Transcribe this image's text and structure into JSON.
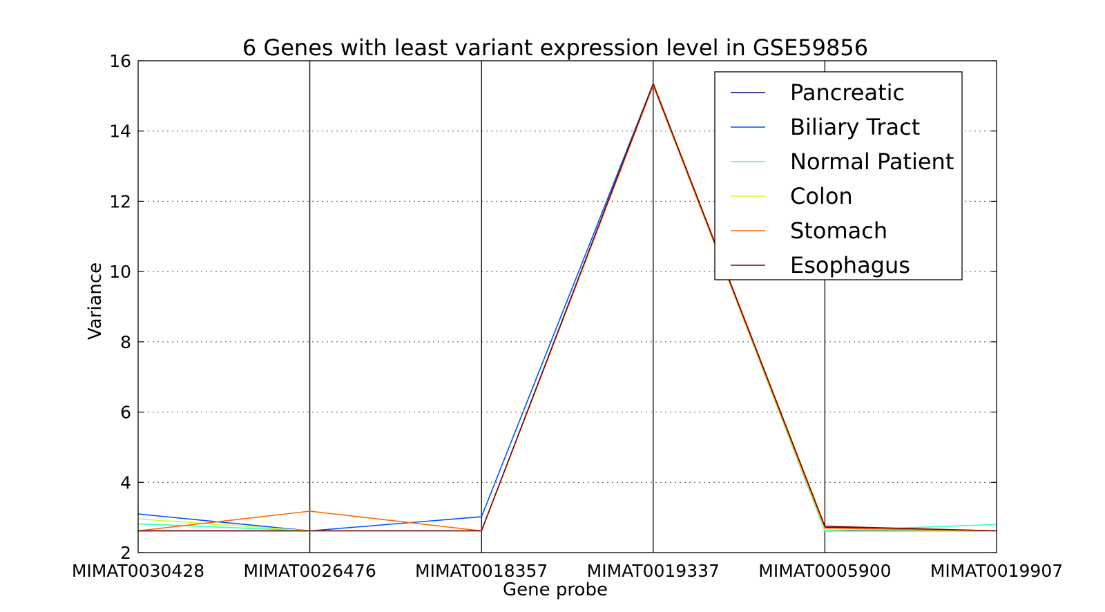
{
  "chart_data": {
    "type": "line",
    "title": "6 Genes with least variant expression level in GSE59856",
    "xlabel": "Gene probe",
    "ylabel": "Variance",
    "ylim": [
      2,
      16
    ],
    "yticks": [
      "2",
      "4",
      "6",
      "8",
      "10",
      "12",
      "14",
      "16"
    ],
    "categories": [
      "MIMAT0030428",
      "MIMAT0026476",
      "MIMAT0018357",
      "MIMAT0019337",
      "MIMAT0005900",
      "MIMAT0019907"
    ],
    "grid": "horizontal dotted",
    "legend_position": "top-right",
    "series": [
      {
        "name": "Pancreatic",
        "color": "#00007f",
        "values": [
          2.62,
          2.62,
          2.62,
          15.35,
          2.72,
          2.62
        ]
      },
      {
        "name": "Biliary Tract",
        "color": "#0050ff",
        "values": [
          3.1,
          2.62,
          3.02,
          15.35,
          2.62,
          2.62
        ]
      },
      {
        "name": "Normal Patient",
        "color": "#29ffce",
        "values": [
          2.82,
          2.62,
          2.62,
          15.35,
          2.62,
          2.8
        ]
      },
      {
        "name": "Colon",
        "color": "#ceff29",
        "values": [
          2.96,
          2.62,
          2.62,
          15.3,
          2.65,
          2.62
        ]
      },
      {
        "name": "Stomach",
        "color": "#ff6800",
        "values": [
          2.62,
          3.18,
          2.62,
          15.3,
          2.7,
          2.62
        ]
      },
      {
        "name": "Esophagus",
        "color": "#7f0000",
        "values": [
          2.62,
          2.62,
          2.62,
          15.35,
          2.75,
          2.62
        ]
      }
    ]
  }
}
